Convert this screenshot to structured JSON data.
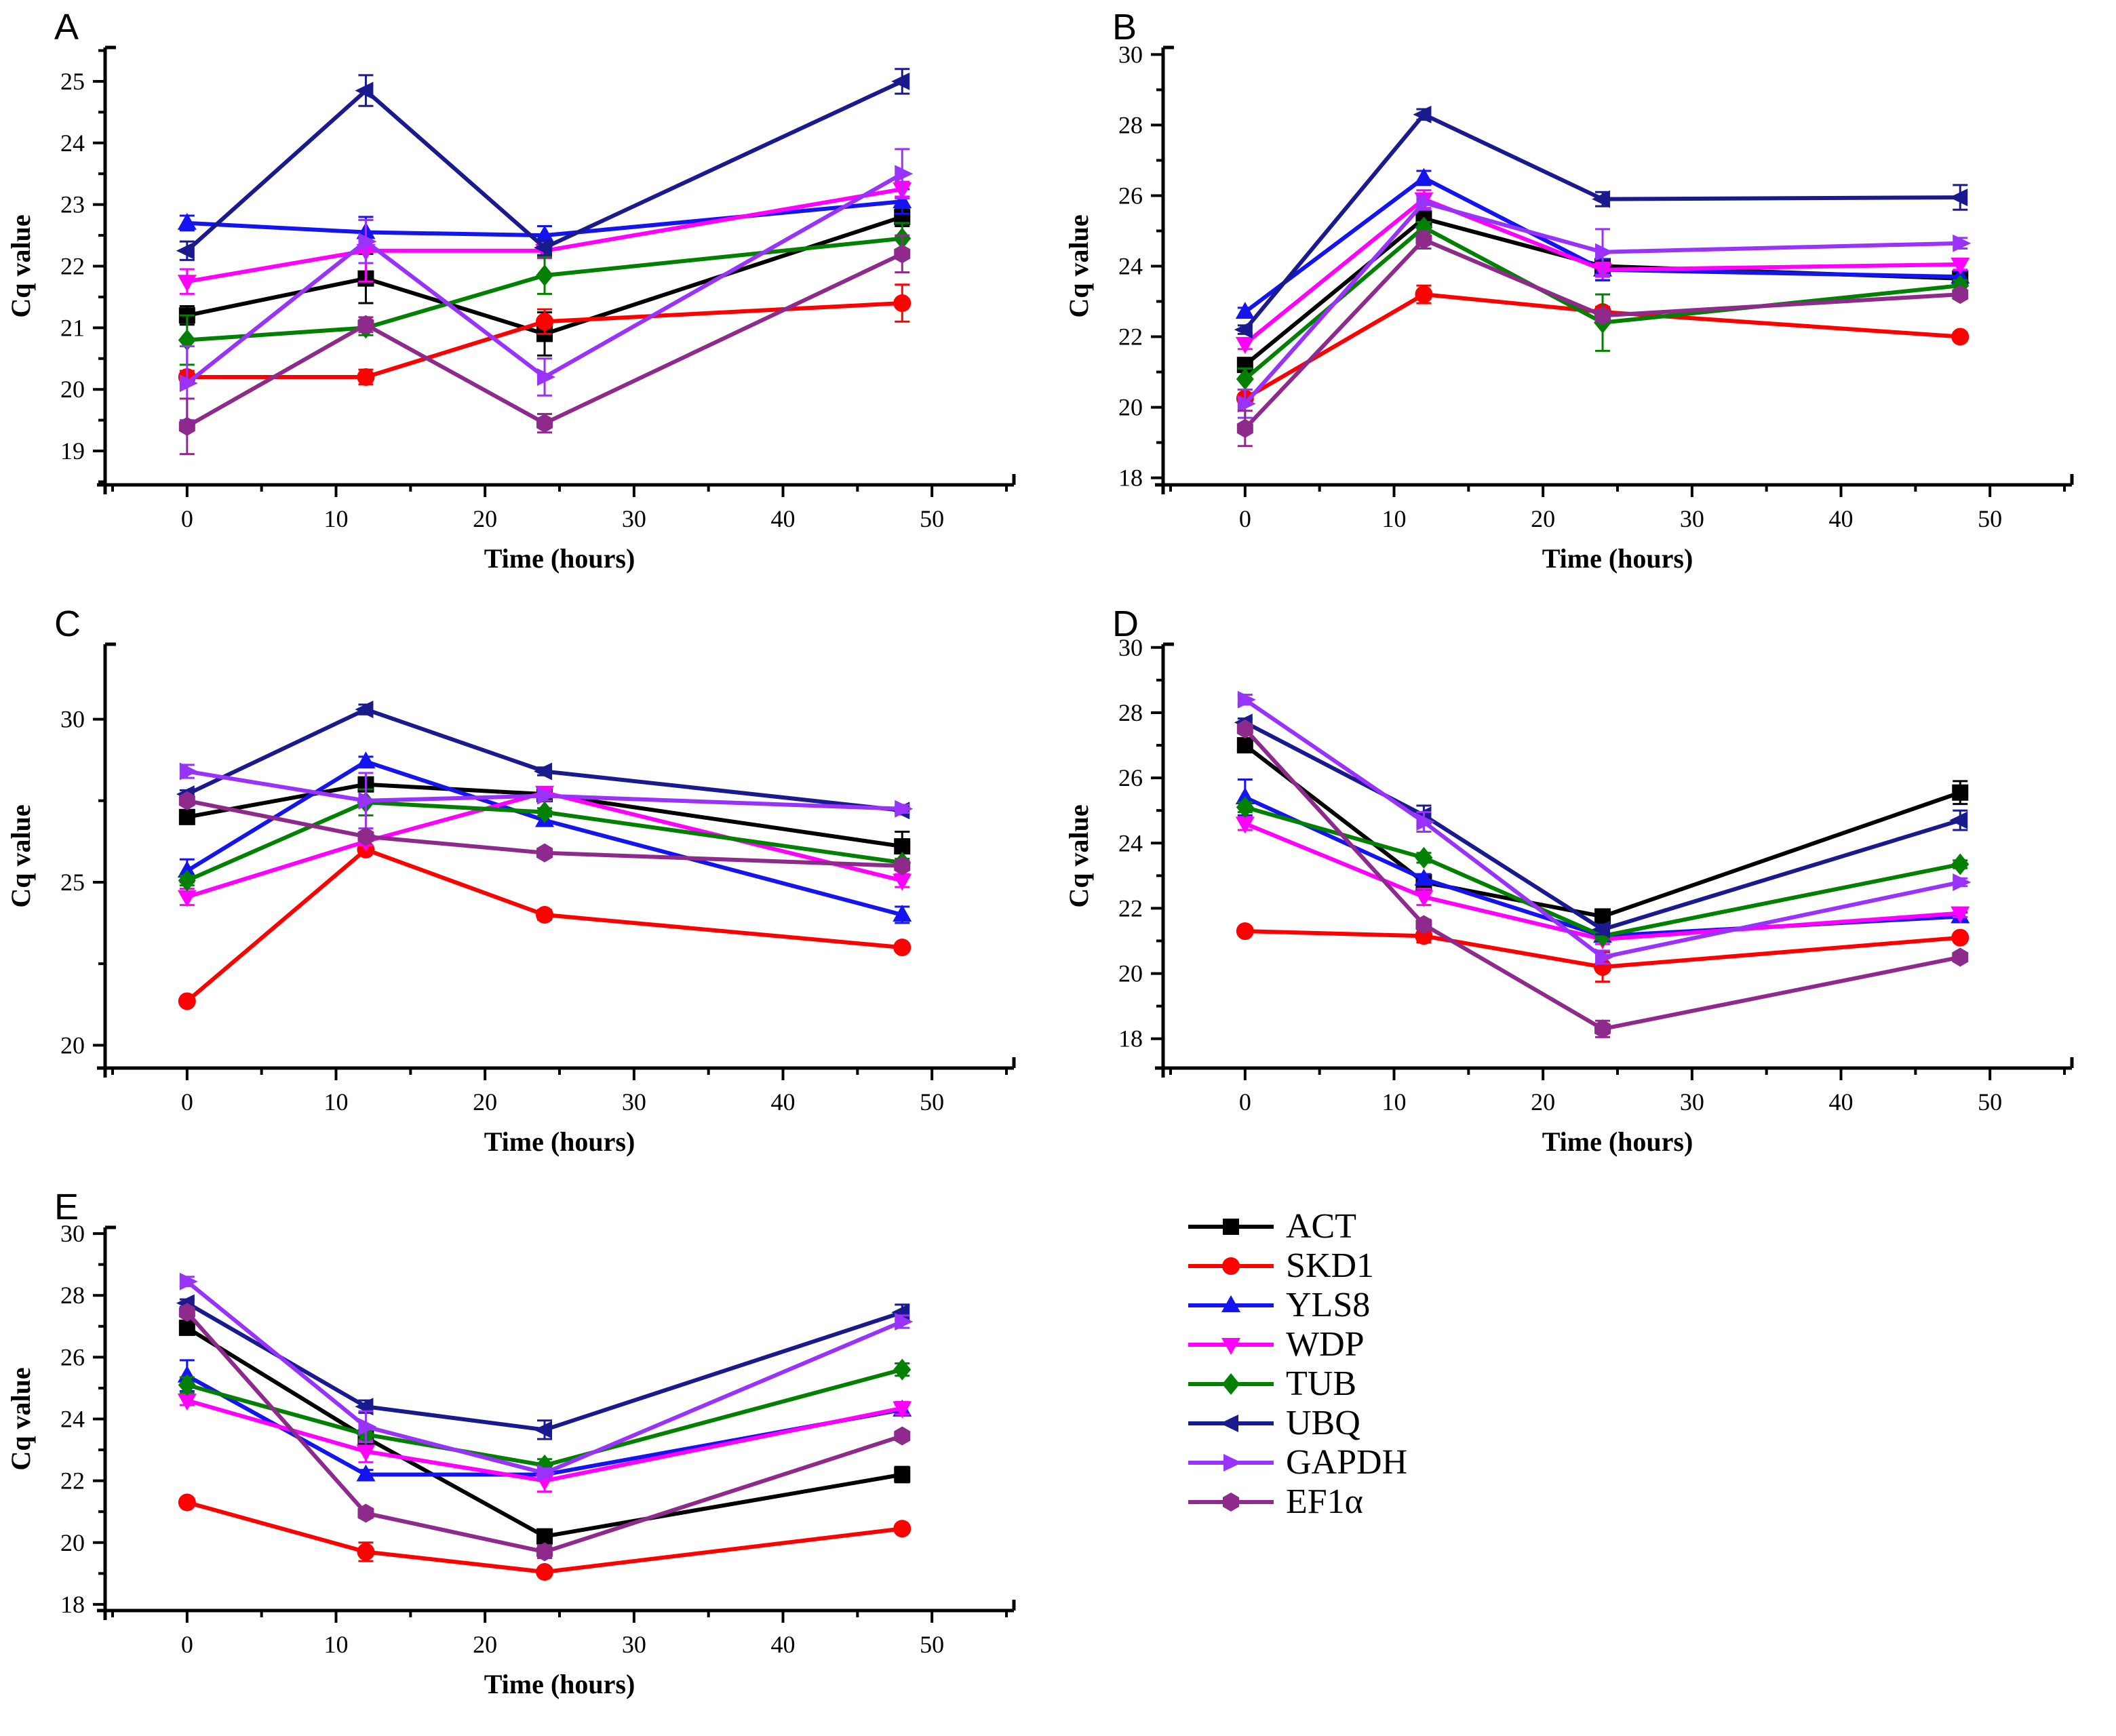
{
  "figure": {
    "background": "#ffffff"
  },
  "labels": {
    "xlabel": "Time (hours)",
    "ylabel": "Cq value"
  },
  "series": [
    {
      "id": "ACT",
      "label": "ACT",
      "color": "#000000",
      "marker": "square"
    },
    {
      "id": "SKD1",
      "label": "SKD1",
      "color": "#fe0000",
      "marker": "circle"
    },
    {
      "id": "YLS8",
      "label": "YLS8",
      "color": "#1414f0",
      "marker": "triangle-up"
    },
    {
      "id": "WDP",
      "label": "WDP",
      "color": "#ff00fe",
      "marker": "triangle-down"
    },
    {
      "id": "TUB",
      "label": "TUB",
      "color": "#018001",
      "marker": "diamond"
    },
    {
      "id": "UBQ",
      "label": "UBQ",
      "color": "#1a1a8f",
      "marker": "triangle-left"
    },
    {
      "id": "GAPDH",
      "label": "GAPDH",
      "color": "#9932fa",
      "marker": "triangle-right"
    },
    {
      "id": "EF1a",
      "label": "EF1α",
      "color": "#8e2a8c",
      "marker": "hexagon"
    }
  ],
  "chart_data": [
    {
      "id": "A",
      "type": "line",
      "title": "A",
      "xlabel": "Time (hours)",
      "ylabel": "Cq value",
      "x": [
        0,
        12,
        24,
        48
      ],
      "xlim": [
        -5.5,
        55.5
      ],
      "xticks": [
        0,
        10,
        20,
        30,
        40,
        50
      ],
      "xminor": 5,
      "ylim": [
        18.45,
        25.55
      ],
      "yticks": [
        19,
        20,
        21,
        22,
        23,
        24,
        25
      ],
      "yminor": 0.5,
      "grid": false,
      "legend_position": "none",
      "series": [
        {
          "name": "ACT",
          "values": [
            21.2,
            21.8,
            20.9,
            22.8
          ],
          "errors": [
            0.15,
            0.4,
            0.35,
            0.15
          ]
        },
        {
          "name": "SKD1",
          "values": [
            20.2,
            20.2,
            21.1,
            21.4
          ],
          "errors": [
            0.1,
            0.12,
            0.2,
            0.3
          ]
        },
        {
          "name": "YLS8",
          "values": [
            22.7,
            22.55,
            22.5,
            23.05
          ],
          "errors": [
            0.12,
            0.25,
            0.15,
            0.2
          ]
        },
        {
          "name": "WDP",
          "values": [
            21.75,
            22.25,
            22.25,
            23.25
          ],
          "errors": [
            0.2,
            0.5,
            0.12,
            0.12
          ]
        },
        {
          "name": "TUB",
          "values": [
            20.8,
            21.0,
            21.85,
            22.45
          ],
          "errors": [
            0.4,
            0.12,
            0.3,
            0.25
          ]
        },
        {
          "name": "UBQ",
          "values": [
            22.25,
            24.85,
            22.3,
            25.0
          ],
          "errors": [
            0.15,
            0.25,
            0.12,
            0.2
          ]
        },
        {
          "name": "GAPDH",
          "values": [
            20.1,
            22.4,
            20.2,
            23.5
          ],
          "errors": [
            0.6,
            0.35,
            0.3,
            0.4
          ]
        },
        {
          "name": "EF1a",
          "values": [
            19.4,
            21.05,
            19.45,
            22.2
          ],
          "errors": [
            0.45,
            0.12,
            0.15,
            0.3
          ]
        }
      ]
    },
    {
      "id": "B",
      "type": "line",
      "title": "B",
      "xlabel": "Time (hours)",
      "ylabel": "Cq value",
      "x": [
        0,
        12,
        24,
        48
      ],
      "xlim": [
        -5.5,
        55.5
      ],
      "xticks": [
        0,
        10,
        20,
        30,
        40,
        50
      ],
      "xminor": 5,
      "ylim": [
        17.8,
        30.2
      ],
      "yticks": [
        18,
        20,
        22,
        24,
        26,
        28,
        30
      ],
      "yminor": 1,
      "grid": false,
      "legend_position": "none",
      "series": [
        {
          "name": "ACT",
          "values": [
            21.2,
            25.35,
            24.0,
            23.65
          ],
          "errors": [
            0.12,
            0.15,
            0.4,
            0.15
          ]
        },
        {
          "name": "SKD1",
          "values": [
            20.25,
            23.2,
            22.7,
            22.0
          ],
          "errors": [
            0.1,
            0.25,
            0.15,
            0.12
          ]
        },
        {
          "name": "YLS8",
          "values": [
            22.7,
            26.5,
            23.9,
            23.7
          ],
          "errors": [
            0.12,
            0.2,
            0.3,
            0.15
          ]
        },
        {
          "name": "WDP",
          "values": [
            21.8,
            25.9,
            23.9,
            24.05
          ],
          "errors": [
            0.15,
            0.25,
            0.2,
            0.15
          ]
        },
        {
          "name": "TUB",
          "values": [
            20.8,
            25.1,
            22.4,
            23.45
          ],
          "errors": [
            0.3,
            0.15,
            0.8,
            0.15
          ]
        },
        {
          "name": "UBQ",
          "values": [
            22.2,
            28.3,
            25.9,
            25.95
          ],
          "errors": [
            0.12,
            0.15,
            0.2,
            0.35
          ]
        },
        {
          "name": "GAPDH",
          "values": [
            20.1,
            25.8,
            24.4,
            24.65
          ],
          "errors": [
            0.4,
            0.2,
            0.65,
            0.15
          ]
        },
        {
          "name": "EF1a",
          "values": [
            19.4,
            24.75,
            22.6,
            23.2
          ],
          "errors": [
            0.5,
            0.25,
            0.15,
            0.12
          ]
        }
      ]
    },
    {
      "id": "C",
      "type": "line",
      "title": "C",
      "xlabel": "Time (hours)",
      "ylabel": "Cq value",
      "x": [
        0,
        12,
        24,
        48
      ],
      "xlim": [
        -5.5,
        55.5
      ],
      "xticks": [
        0,
        10,
        20,
        30,
        40,
        50
      ],
      "xminor": 5,
      "ylim": [
        19.3,
        32.3
      ],
      "yticks": [
        20,
        25,
        30
      ],
      "yminor": 2.5,
      "grid": false,
      "legend_position": "none",
      "series": [
        {
          "name": "ACT",
          "values": [
            27.0,
            28.0,
            27.7,
            26.1
          ],
          "errors": [
            0.12,
            0.15,
            0.12,
            0.45
          ]
        },
        {
          "name": "SKD1",
          "values": [
            21.35,
            26.0,
            24.0,
            23.0
          ],
          "errors": [
            0.1,
            0.12,
            0.15,
            0.12
          ]
        },
        {
          "name": "YLS8",
          "values": [
            25.35,
            28.7,
            26.9,
            24.0
          ],
          "errors": [
            0.35,
            0.15,
            0.12,
            0.25
          ]
        },
        {
          "name": "WDP",
          "values": [
            24.55,
            26.25,
            27.75,
            25.05
          ],
          "errors": [
            0.25,
            0.12,
            0.15,
            0.2
          ]
        },
        {
          "name": "TUB",
          "values": [
            25.05,
            27.45,
            27.15,
            25.6
          ],
          "errors": [
            0.15,
            0.4,
            0.12,
            0.12
          ]
        },
        {
          "name": "UBQ",
          "values": [
            27.7,
            30.3,
            28.4,
            27.2
          ],
          "errors": [
            0.12,
            0.15,
            0.12,
            0.12
          ]
        },
        {
          "name": "GAPDH",
          "values": [
            28.4,
            27.5,
            27.65,
            27.25
          ],
          "errors": [
            0.2,
            0.85,
            0.15,
            0.12
          ]
        },
        {
          "name": "EF1a",
          "values": [
            27.5,
            26.4,
            25.9,
            25.5
          ],
          "errors": [
            0.12,
            0.12,
            0.12,
            0.12
          ]
        }
      ]
    },
    {
      "id": "D",
      "type": "line",
      "title": "D",
      "xlabel": "Time (hours)",
      "ylabel": "Cq value",
      "x": [
        0,
        12,
        24,
        48
      ],
      "xlim": [
        -5.5,
        55.5
      ],
      "xticks": [
        0,
        10,
        20,
        30,
        40,
        50
      ],
      "xminor": 5,
      "ylim": [
        17.1,
        30.1
      ],
      "yticks": [
        18,
        20,
        22,
        24,
        26,
        28,
        30
      ],
      "yminor": 1,
      "grid": false,
      "legend_position": "none",
      "series": [
        {
          "name": "ACT",
          "values": [
            27.0,
            22.8,
            21.75,
            25.55
          ],
          "errors": [
            0.12,
            0.15,
            0.15,
            0.35
          ]
        },
        {
          "name": "SKD1",
          "values": [
            21.3,
            21.15,
            20.2,
            21.1
          ],
          "errors": [
            0.1,
            0.2,
            0.45,
            0.12
          ]
        },
        {
          "name": "YLS8",
          "values": [
            25.4,
            22.9,
            21.15,
            21.75
          ],
          "errors": [
            0.55,
            0.15,
            0.12,
            0.12
          ]
        },
        {
          "name": "WDP",
          "values": [
            24.6,
            22.35,
            21.05,
            21.85
          ],
          "errors": [
            0.2,
            0.25,
            0.15,
            0.12
          ]
        },
        {
          "name": "TUB",
          "values": [
            25.1,
            23.55,
            21.15,
            23.35
          ],
          "errors": [
            0.15,
            0.15,
            0.12,
            0.12
          ]
        },
        {
          "name": "UBQ",
          "values": [
            27.7,
            24.85,
            21.35,
            24.7
          ],
          "errors": [
            0.12,
            0.3,
            0.15,
            0.3
          ]
        },
        {
          "name": "GAPDH",
          "values": [
            28.4,
            24.65,
            20.5,
            22.8
          ],
          "errors": [
            0.15,
            0.3,
            0.2,
            0.12
          ]
        },
        {
          "name": "EF1a",
          "values": [
            27.5,
            21.5,
            18.3,
            20.5
          ],
          "errors": [
            0.12,
            0.15,
            0.25,
            0.12
          ]
        }
      ]
    },
    {
      "id": "E",
      "type": "line",
      "title": "E",
      "xlabel": "Time (hours)",
      "ylabel": "Cq value",
      "x": [
        0,
        12,
        24,
        48
      ],
      "xlim": [
        -5.5,
        55.5
      ],
      "xticks": [
        0,
        10,
        20,
        30,
        40,
        50
      ],
      "xminor": 5,
      "ylim": [
        17.8,
        30.2
      ],
      "yticks": [
        18,
        20,
        22,
        24,
        26,
        28,
        30
      ],
      "yminor": 1,
      "grid": false,
      "legend_position": "none",
      "series": [
        {
          "name": "ACT",
          "values": [
            26.95,
            23.4,
            20.2,
            22.2
          ],
          "errors": [
            0.12,
            0.15,
            0.15,
            0.25
          ]
        },
        {
          "name": "SKD1",
          "values": [
            21.3,
            19.7,
            19.05,
            20.45
          ],
          "errors": [
            0.1,
            0.3,
            0.12,
            0.12
          ]
        },
        {
          "name": "YLS8",
          "values": [
            25.4,
            22.2,
            22.2,
            24.3
          ],
          "errors": [
            0.5,
            0.15,
            0.12,
            0.15
          ]
        },
        {
          "name": "WDP",
          "values": [
            24.6,
            22.95,
            22.0,
            24.35
          ],
          "errors": [
            0.15,
            0.35,
            0.35,
            0.2
          ]
        },
        {
          "name": "TUB",
          "values": [
            25.1,
            23.5,
            22.5,
            25.6
          ],
          "errors": [
            0.25,
            0.15,
            0.2,
            0.2
          ]
        },
        {
          "name": "UBQ",
          "values": [
            27.75,
            24.4,
            23.65,
            27.45
          ],
          "errors": [
            0.12,
            0.2,
            0.3,
            0.25
          ]
        },
        {
          "name": "GAPDH",
          "values": [
            28.45,
            23.75,
            22.25,
            27.15
          ],
          "errors": [
            0.15,
            0.5,
            0.15,
            0.2
          ]
        },
        {
          "name": "EF1a",
          "values": [
            27.45,
            20.95,
            19.7,
            23.45
          ],
          "errors": [
            0.12,
            0.15,
            0.2,
            0.12
          ]
        }
      ]
    }
  ],
  "legend": {
    "items": [
      "ACT",
      "SKD1",
      "YLS8",
      "WDP",
      "TUB",
      "UBQ",
      "GAPDH",
      "EF1α"
    ]
  }
}
